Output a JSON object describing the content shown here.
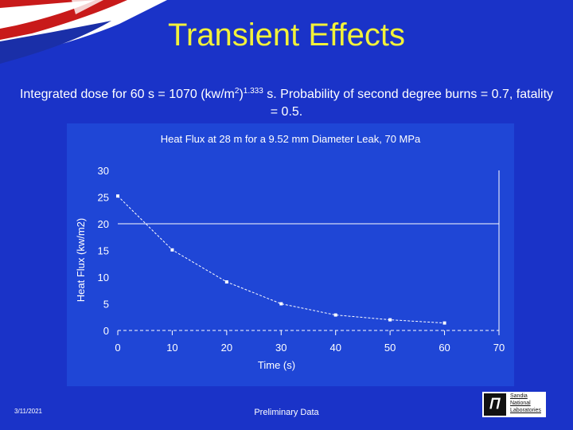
{
  "slide": {
    "title": "Transient Effects",
    "subtitle_part1": "Integrated dose for 60 s = 1070 (kw/m",
    "subtitle_sup1": "2",
    "subtitle_part2": ")",
    "subtitle_sup2": "1.333",
    "subtitle_part3": " s.  Probability of second degree burns = 0.7, fatality = 0.5.",
    "date": "3/11/2021",
    "footer": "Preliminary Data",
    "logo_lines": [
      "Sandia",
      "National",
      "Laboratories"
    ]
  },
  "colors": {
    "background": "#1a33c8",
    "title": "#f2f23a",
    "text": "#ffffff"
  },
  "chart_data": {
    "type": "line",
    "title": "Heat Flux at 28 m for a 9.52 mm Diameter Leak, 70 MPa",
    "xlabel": "Time (s)",
    "ylabel": "Heat Flux (kw/m2)",
    "xlim": [
      0,
      70
    ],
    "ylim": [
      0,
      30
    ],
    "xticks": [
      0,
      10,
      20,
      30,
      40,
      50,
      60,
      70
    ],
    "yticks": [
      0,
      5,
      10,
      15,
      20,
      25,
      30
    ],
    "x": [
      0,
      10,
      20,
      30,
      40,
      50,
      60
    ],
    "y": [
      25.2,
      15.1,
      9.1,
      5.0,
      2.9,
      2.0,
      1.4
    ],
    "reference_line": 20,
    "grid": false,
    "legend": "none"
  }
}
